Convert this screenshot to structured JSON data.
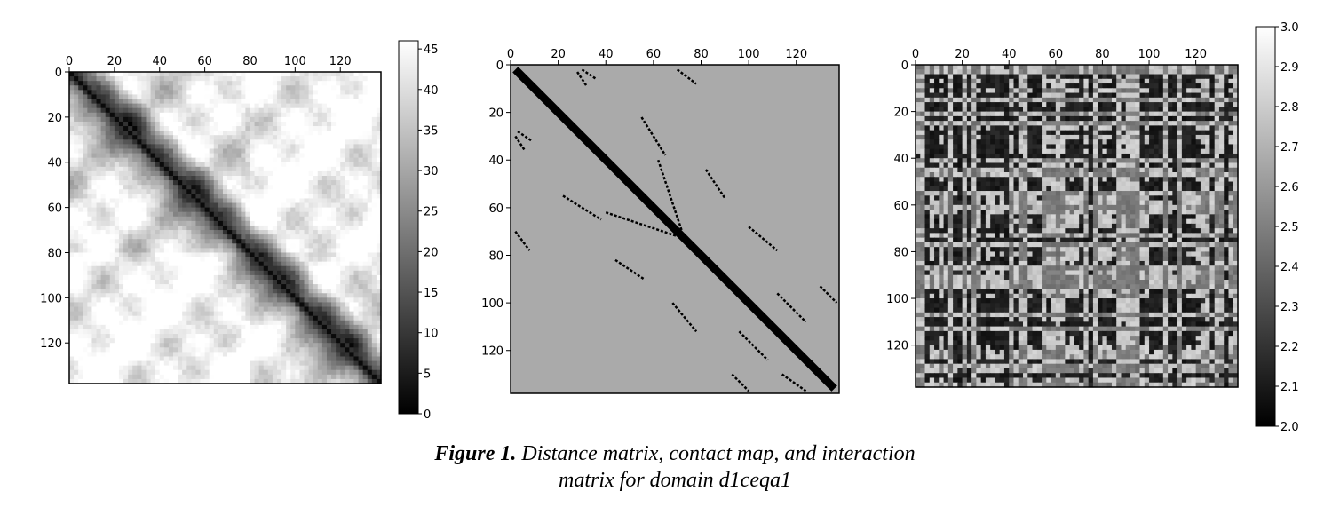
{
  "caption": {
    "label": "Figure 1.",
    "line1": "Distance matrix, contact map, and interaction",
    "line2": "matrix for domain d1ceqa1"
  },
  "chart_data": [
    {
      "type": "heatmap",
      "name": "distance-matrix",
      "x_ticks": [
        "0",
        "20",
        "40",
        "60",
        "80",
        "100",
        "120"
      ],
      "y_ticks": [
        "0",
        "20",
        "40",
        "60",
        "80",
        "100",
        "120"
      ],
      "xlim": [
        0,
        138
      ],
      "ylim": [
        0,
        138
      ],
      "colorbar": {
        "min": 0,
        "max": 46,
        "ticks": [
          "0",
          "5",
          "10",
          "15",
          "20",
          "25",
          "30",
          "35",
          "40",
          "45"
        ],
        "colormap": "gray"
      }
    },
    {
      "type": "heatmap",
      "name": "contact-map",
      "x_ticks": [
        "0",
        "20",
        "40",
        "60",
        "80",
        "100",
        "120"
      ],
      "y_ticks": [
        "0",
        "20",
        "40",
        "60",
        "80",
        "100",
        "120"
      ],
      "xlim": [
        0,
        138
      ],
      "ylim": [
        0,
        138
      ],
      "background_color": "#aaaaaa",
      "contact_color": "#000000"
    },
    {
      "type": "heatmap",
      "name": "interaction-matrix",
      "x_ticks": [
        "0",
        "20",
        "40",
        "60",
        "80",
        "100",
        "120"
      ],
      "y_ticks": [
        "0",
        "20",
        "40",
        "60",
        "80",
        "100",
        "120"
      ],
      "xlim": [
        0,
        138
      ],
      "ylim": [
        0,
        138
      ],
      "colorbar": {
        "min": 2.0,
        "max": 3.0,
        "ticks": [
          "2.0",
          "2.1",
          "2.2",
          "2.3",
          "2.4",
          "2.5",
          "2.6",
          "2.7",
          "2.8",
          "2.9",
          "3.0"
        ],
        "colormap": "gray"
      }
    }
  ]
}
